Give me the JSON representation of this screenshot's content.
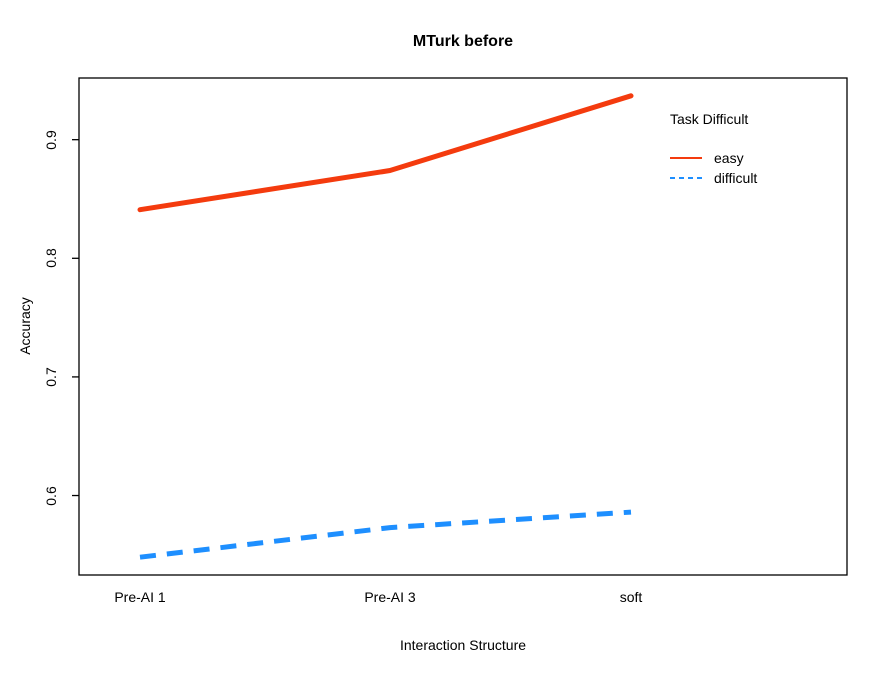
{
  "chart_data": {
    "type": "line",
    "title": "MTurk before",
    "xlabel": "Interaction Structure",
    "ylabel": "Accuracy",
    "categories": [
      "Pre-AI 1",
      "Pre-AI 3",
      "soft"
    ],
    "series": [
      {
        "name": "easy",
        "values": [
          0.841,
          0.874,
          0.937
        ],
        "color": "#F43B0E",
        "style": "solid"
      },
      {
        "name": "difficult",
        "values": [
          0.548,
          0.573,
          0.586
        ],
        "color": "#1E8FFF",
        "style": "dashed"
      }
    ],
    "ylim": [
      0.533,
      0.952
    ],
    "yticks": [
      0.6,
      0.7,
      0.8,
      0.9
    ],
    "grid": false,
    "axis_color": "#000000",
    "legend": {
      "title": "Task Difficult",
      "position": "top-right",
      "entries": [
        {
          "label": "easy"
        },
        {
          "label": "difficult"
        }
      ]
    }
  }
}
